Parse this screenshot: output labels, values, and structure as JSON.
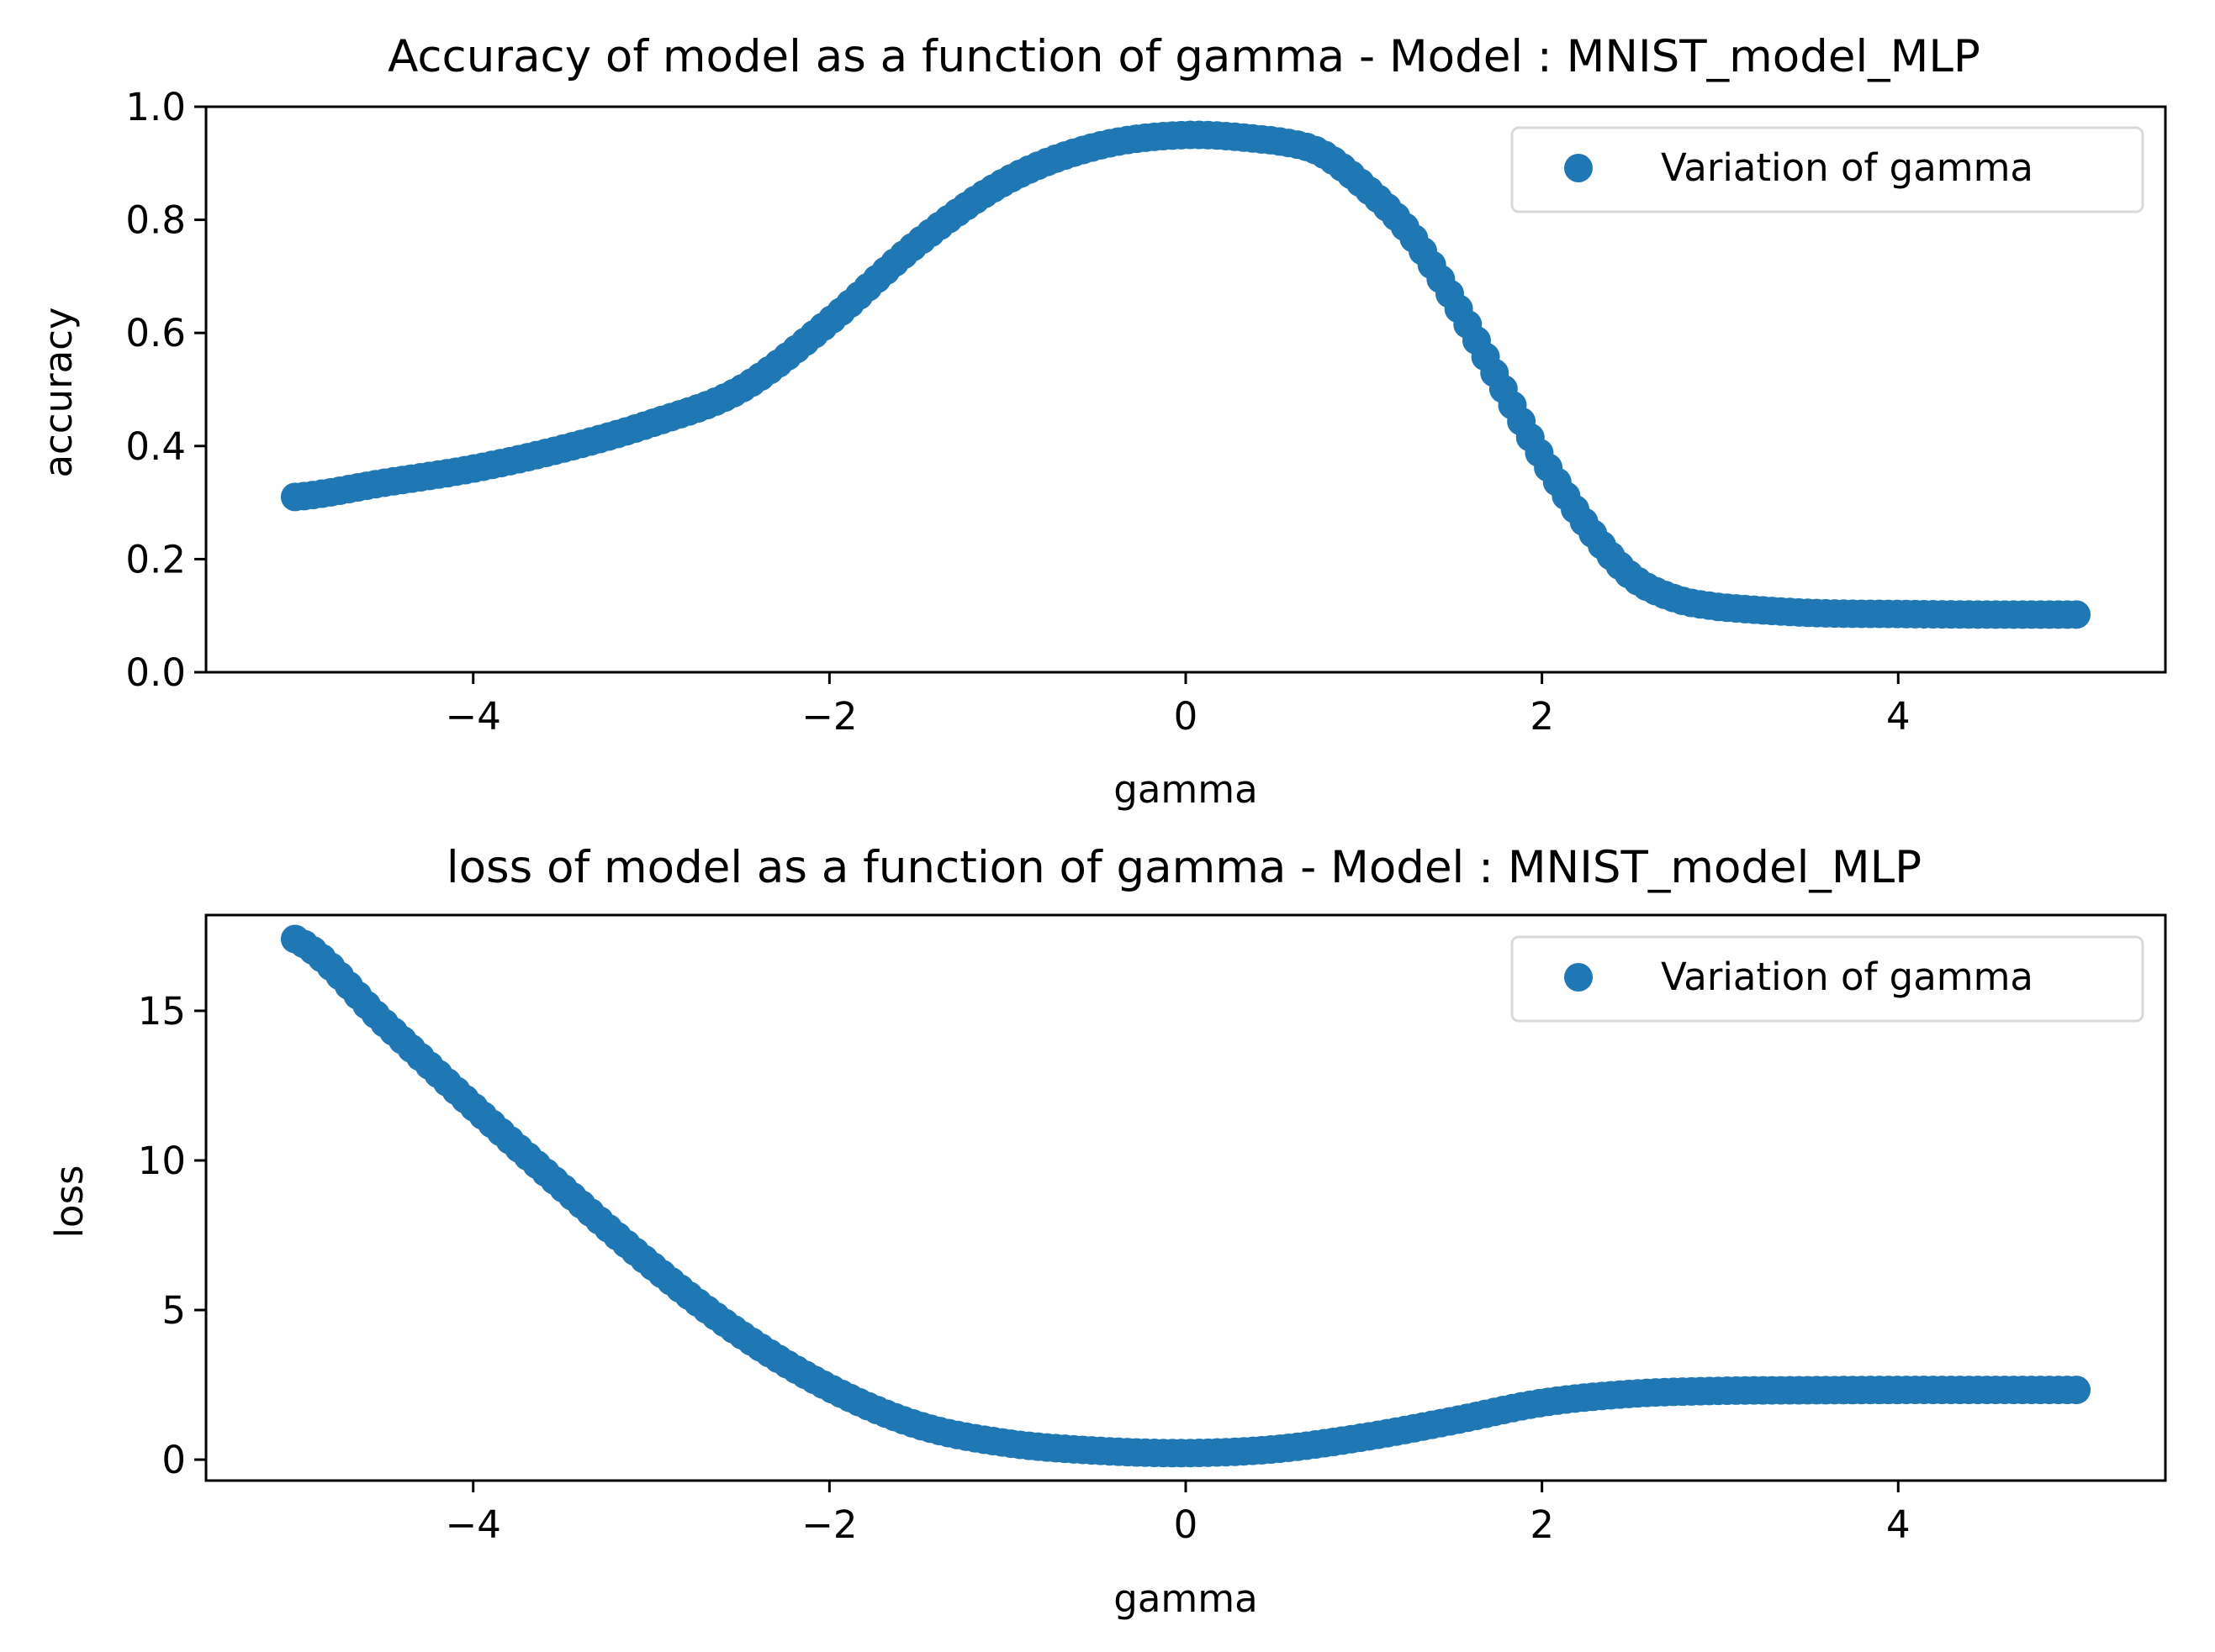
{
  "colors": {
    "series": "#1f77b4",
    "axes": "#000000",
    "background": "#ffffff",
    "legend_edge": "#d9d9d9"
  },
  "chart_data": [
    {
      "type": "scatter",
      "title": "Accuracy of model as a function of gamma - Model : MNIST_model_MLP",
      "xlabel": "gamma",
      "ylabel": "accuracy",
      "xlim": [
        -5.5,
        5.5
      ],
      "ylim": [
        0.0,
        1.0
      ],
      "xticks": [
        -4,
        -2,
        0,
        2,
        4
      ],
      "xtick_labels": [
        "−4",
        "−2",
        "0",
        "2",
        "4"
      ],
      "yticks": [
        0.0,
        0.2,
        0.4,
        0.6,
        0.8,
        1.0
      ],
      "ytick_labels": [
        "0.0",
        "0.2",
        "0.4",
        "0.6",
        "0.8",
        "1.0"
      ],
      "grid": false,
      "legend_position": "top-right",
      "series": [
        {
          "name": "Variation of gamma",
          "x": [
            -5.0,
            -4.5,
            -4.0,
            -3.5,
            -3.0,
            -2.5,
            -2.0,
            -1.5,
            -1.0,
            -0.5,
            0.0,
            0.5,
            0.75,
            1.0,
            1.25,
            1.5,
            1.75,
            2.0,
            2.25,
            2.5,
            2.75,
            3.0,
            3.5,
            4.0,
            4.5,
            5.0
          ],
          "y": [
            0.31,
            0.335,
            0.36,
            0.395,
            0.44,
            0.5,
            0.62,
            0.76,
            0.87,
            0.93,
            0.95,
            0.94,
            0.92,
            0.86,
            0.78,
            0.66,
            0.52,
            0.38,
            0.26,
            0.17,
            0.13,
            0.115,
            0.105,
            0.103,
            0.102,
            0.102
          ]
        }
      ]
    },
    {
      "type": "scatter",
      "title": "loss of model as a function of gamma - Model : MNIST_model_MLP",
      "xlabel": "gamma",
      "ylabel": "loss",
      "xlim": [
        -5.5,
        5.5
      ],
      "ylim": [
        -0.7,
        18.2
      ],
      "xticks": [
        -4,
        -2,
        0,
        2,
        4
      ],
      "xtick_labels": [
        "−4",
        "−2",
        "0",
        "2",
        "4"
      ],
      "yticks": [
        0,
        5,
        10,
        15
      ],
      "ytick_labels": [
        "0",
        "5",
        "10",
        "15"
      ],
      "grid": false,
      "legend_position": "top-right",
      "series": [
        {
          "name": "Variation of gamma",
          "x": [
            -5.0,
            -4.5,
            -4.0,
            -3.5,
            -3.0,
            -2.5,
            -2.0,
            -1.5,
            -1.0,
            -0.5,
            0.0,
            0.5,
            1.0,
            1.5,
            2.0,
            2.5,
            3.0,
            3.5,
            4.0,
            4.5,
            5.0
          ],
          "y": [
            17.4,
            14.6,
            11.8,
            9.1,
            6.5,
            4.2,
            2.4,
            1.15,
            0.55,
            0.3,
            0.22,
            0.35,
            0.75,
            1.3,
            1.9,
            2.2,
            2.3,
            2.32,
            2.33,
            2.33,
            2.33
          ]
        }
      ]
    }
  ]
}
